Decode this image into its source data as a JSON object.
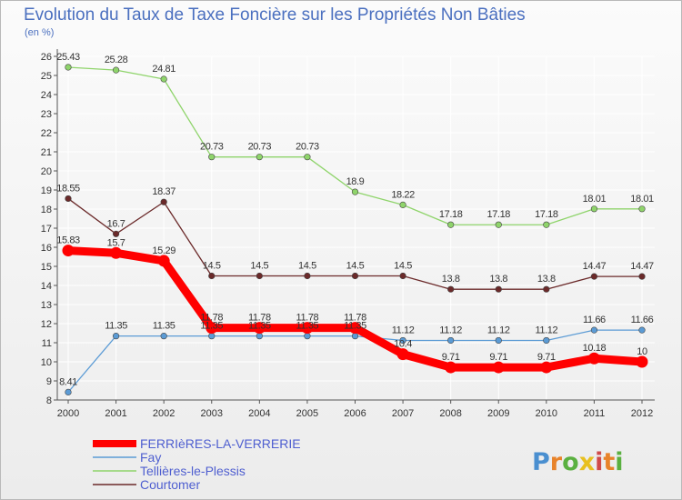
{
  "chart_data": {
    "type": "line",
    "title": "Evolution du Taux de Taxe Foncière sur les Propriétés Non Bâties",
    "subtitle": "(en %)",
    "categories": [
      "2000",
      "2001",
      "2002",
      "2003",
      "2004",
      "2005",
      "2006",
      "2007",
      "2008",
      "2009",
      "2010",
      "2011",
      "2012"
    ],
    "ylim": [
      8,
      26
    ],
    "yticks": [
      8,
      9,
      10,
      11,
      12,
      13,
      14,
      15,
      16,
      17,
      18,
      19,
      20,
      21,
      22,
      23,
      24,
      25,
      26
    ],
    "series": [
      {
        "name": "FERRIèRES-LA-VERRERIE",
        "color": "#ff0000",
        "values": [
          15.83,
          15.7,
          15.29,
          11.78,
          11.78,
          11.78,
          11.78,
          10.4,
          9.71,
          9.71,
          9.71,
          10.18,
          10
        ],
        "labels": [
          "15.83",
          "15.7",
          "15.29",
          "11.78",
          "11.78",
          "11.78",
          "11.78",
          "10.4",
          "9.71",
          "9.71",
          "9.71",
          "10.18",
          "10"
        ]
      },
      {
        "name": "Fay",
        "color": "#5b9bd5",
        "values": [
          8.41,
          11.35,
          11.35,
          11.35,
          11.35,
          11.35,
          11.35,
          11.12,
          11.12,
          11.12,
          11.12,
          11.66,
          11.66
        ],
        "labels": [
          "8.41",
          "11.35",
          "11.35",
          "11.35",
          "11.35",
          "11.35",
          "11.35",
          "11.12",
          "11.12",
          "11.12",
          "11.12",
          "11.66",
          "11.66"
        ]
      },
      {
        "name": "Tellières-le-Plessis",
        "color": "#8fd46b",
        "values": [
          25.43,
          25.28,
          24.81,
          20.73,
          20.73,
          20.73,
          18.9,
          18.22,
          17.18,
          17.18,
          17.18,
          18.01,
          18.01
        ],
        "labels": [
          "25.43",
          "25.28",
          "24.81",
          "20.73",
          "20.73",
          "20.73",
          "18.9",
          "18.22",
          "17.18",
          "17.18",
          "17.18",
          "18.01",
          "18.01"
        ]
      },
      {
        "name": "Courtomer",
        "color": "#6b2a2a",
        "values": [
          18.55,
          16.7,
          18.37,
          14.5,
          14.5,
          14.5,
          14.5,
          14.5,
          13.8,
          13.8,
          13.8,
          14.47,
          14.47
        ],
        "labels": [
          "18.55",
          "16.7",
          "18.37",
          "14.5",
          "14.5",
          "14.5",
          "14.5",
          "14.5",
          "13.8",
          "13.8",
          "13.8",
          "14.47",
          "14.47"
        ]
      }
    ],
    "legend_position": "bottom-left"
  },
  "brand": {
    "letters": [
      "P",
      "r",
      "o",
      "x",
      "i",
      "t",
      "i"
    ],
    "colors": [
      "#4a8fd0",
      "#e8832a",
      "#5ab040",
      "#e8c020",
      "#d04a4a",
      "#e8832a",
      "#5ab040"
    ]
  }
}
